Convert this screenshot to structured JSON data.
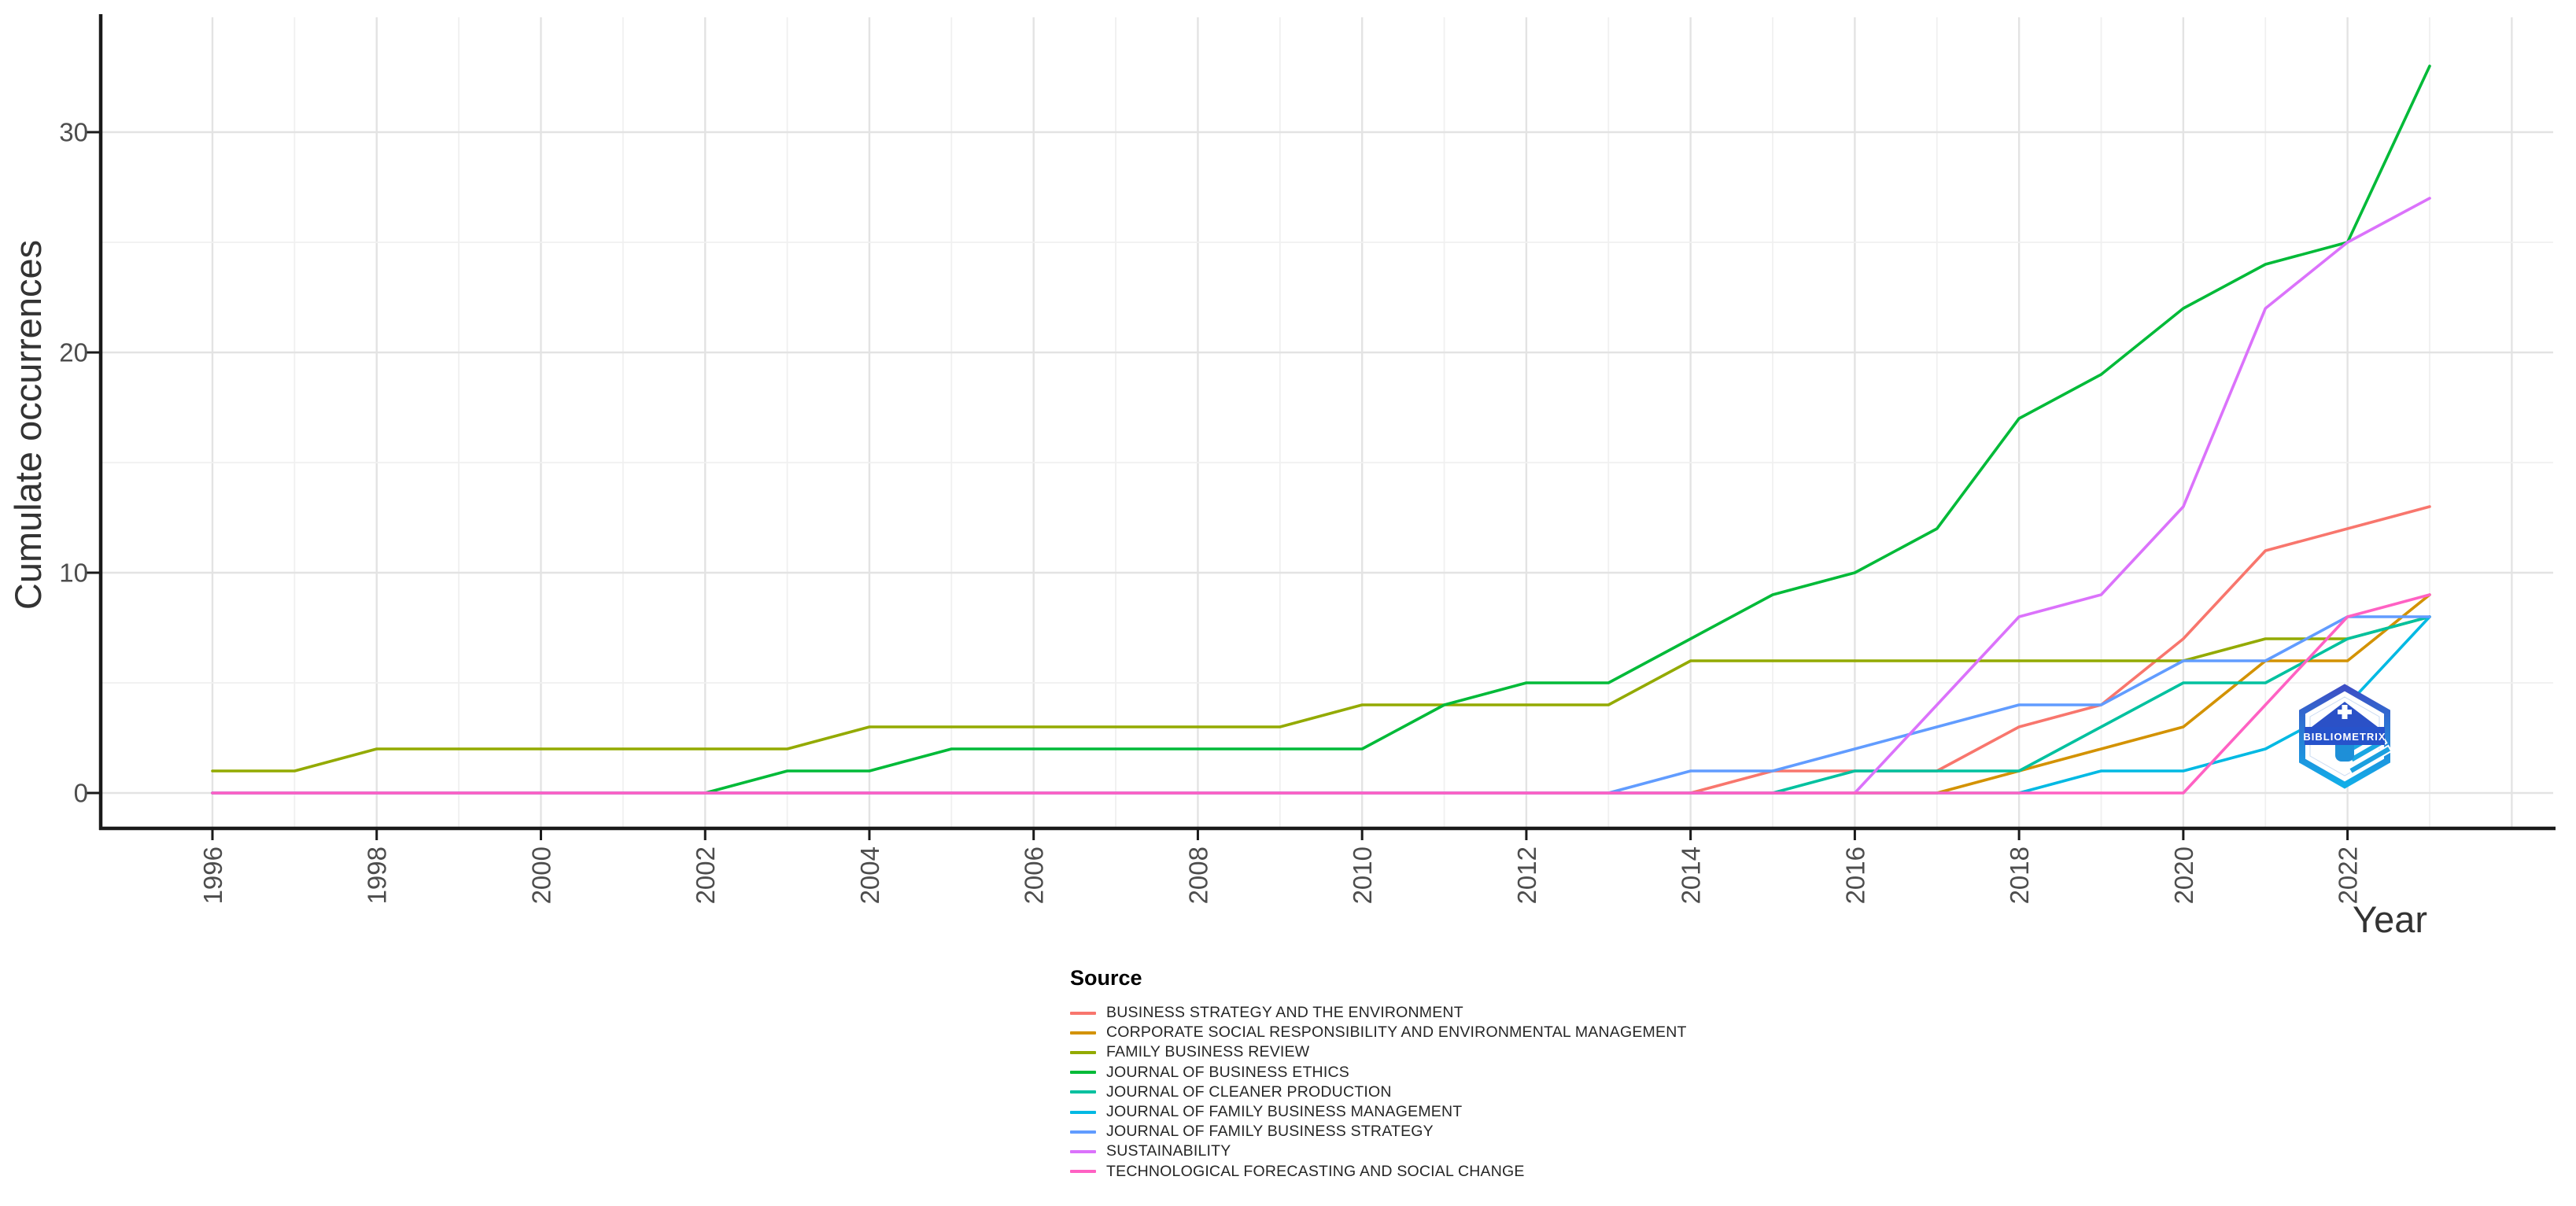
{
  "watermark": {
    "text": "BIBLIOMETRIX"
  },
  "chart_data": {
    "type": "line",
    "title": "",
    "xlabel": "Year",
    "ylabel": "Cumulate occurrences",
    "legend_title": "Source",
    "legend_position": "bottom",
    "grid": true,
    "x": [
      1996,
      1997,
      1998,
      1999,
      2000,
      2001,
      2002,
      2003,
      2004,
      2005,
      2006,
      2007,
      2008,
      2009,
      2010,
      2011,
      2012,
      2013,
      2014,
      2015,
      2016,
      2017,
      2018,
      2019,
      2020,
      2021,
      2022,
      2023
    ],
    "x_tick_years": [
      1996,
      1998,
      2000,
      2002,
      2004,
      2006,
      2008,
      2010,
      2012,
      2014,
      2016,
      2018,
      2020,
      2022
    ],
    "y_ticks": [
      0,
      10,
      20,
      30
    ],
    "y_minor_ticks": [
      5,
      15,
      25
    ],
    "ylim": [
      0,
      35
    ],
    "series": [
      {
        "name": "BUSINESS STRATEGY AND THE ENVIRONMENT",
        "color": "#F8766D",
        "values": [
          0,
          0,
          0,
          0,
          0,
          0,
          0,
          0,
          0,
          0,
          0,
          0,
          0,
          0,
          0,
          0,
          0,
          0,
          0,
          1,
          1,
          1,
          3,
          4,
          7,
          11,
          12,
          13
        ]
      },
      {
        "name": "CORPORATE SOCIAL RESPONSIBILITY AND ENVIRONMENTAL MANAGEMENT",
        "color": "#D39200",
        "values": [
          0,
          0,
          0,
          0,
          0,
          0,
          0,
          0,
          0,
          0,
          0,
          0,
          0,
          0,
          0,
          0,
          0,
          0,
          0,
          0,
          0,
          0,
          1,
          2,
          3,
          6,
          6,
          9
        ]
      },
      {
        "name": "FAMILY BUSINESS REVIEW",
        "color": "#93AA00",
        "values": [
          1,
          1,
          2,
          2,
          2,
          2,
          2,
          2,
          3,
          3,
          3,
          3,
          3,
          3,
          4,
          4,
          4,
          4,
          6,
          6,
          6,
          6,
          6,
          6,
          6,
          7,
          7,
          8
        ]
      },
      {
        "name": "JOURNAL OF BUSINESS ETHICS",
        "color": "#00BA38",
        "values": [
          0,
          0,
          0,
          0,
          0,
          0,
          0,
          1,
          1,
          2,
          2,
          2,
          2,
          2,
          2,
          4,
          5,
          5,
          7,
          9,
          10,
          12,
          17,
          19,
          22,
          24,
          25,
          33
        ]
      },
      {
        "name": "JOURNAL OF CLEANER PRODUCTION",
        "color": "#00C19F",
        "values": [
          0,
          0,
          0,
          0,
          0,
          0,
          0,
          0,
          0,
          0,
          0,
          0,
          0,
          0,
          0,
          0,
          0,
          0,
          0,
          0,
          1,
          1,
          1,
          3,
          5,
          5,
          7,
          8
        ]
      },
      {
        "name": "JOURNAL OF FAMILY BUSINESS MANAGEMENT",
        "color": "#00B9E3",
        "values": [
          0,
          0,
          0,
          0,
          0,
          0,
          0,
          0,
          0,
          0,
          0,
          0,
          0,
          0,
          0,
          0,
          0,
          0,
          0,
          0,
          0,
          0,
          0,
          1,
          1,
          2,
          4,
          8
        ]
      },
      {
        "name": "JOURNAL OF FAMILY BUSINESS STRATEGY",
        "color": "#619CFF",
        "values": [
          0,
          0,
          0,
          0,
          0,
          0,
          0,
          0,
          0,
          0,
          0,
          0,
          0,
          0,
          0,
          0,
          0,
          0,
          1,
          1,
          2,
          3,
          4,
          4,
          6,
          6,
          8,
          8
        ]
      },
      {
        "name": "SUSTAINABILITY",
        "color": "#DB72FB",
        "values": [
          0,
          0,
          0,
          0,
          0,
          0,
          0,
          0,
          0,
          0,
          0,
          0,
          0,
          0,
          0,
          0,
          0,
          0,
          0,
          0,
          0,
          4,
          8,
          9,
          13,
          22,
          25,
          27
        ]
      },
      {
        "name": "TECHNOLOGICAL FORECASTING AND SOCIAL CHANGE",
        "color": "#FF61C3",
        "values": [
          0,
          0,
          0,
          0,
          0,
          0,
          0,
          0,
          0,
          0,
          0,
          0,
          0,
          0,
          0,
          0,
          0,
          0,
          0,
          0,
          0,
          0,
          0,
          0,
          0,
          4,
          8,
          9
        ]
      }
    ]
  }
}
